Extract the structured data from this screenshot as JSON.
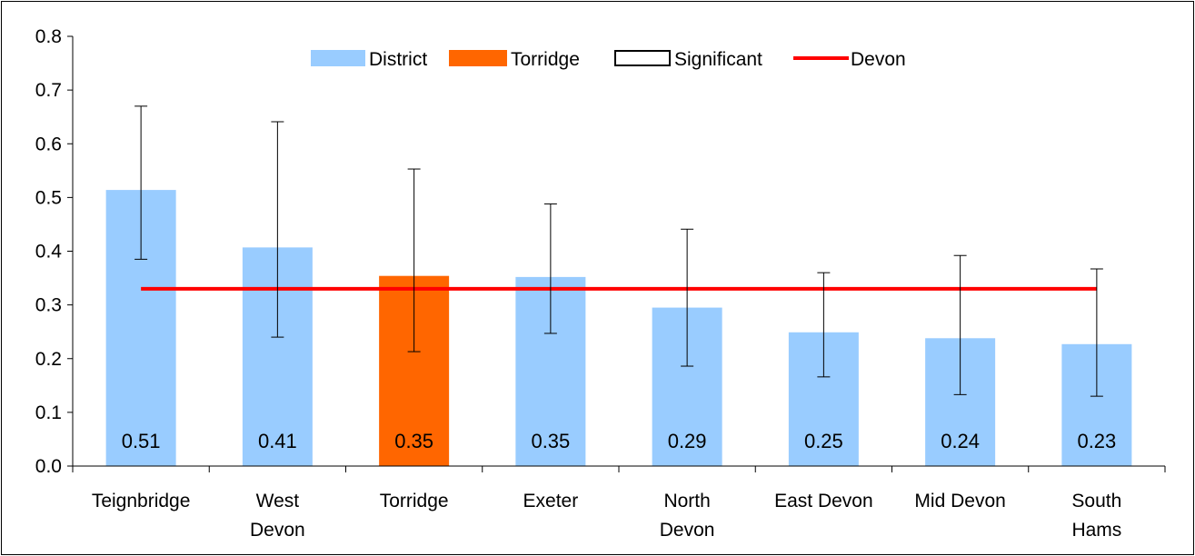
{
  "chart_data": {
    "type": "bar",
    "title": "",
    "xlabel": "",
    "ylabel": "",
    "ylim": [
      0,
      0.8
    ],
    "yticks": [
      "0.0",
      "0.1",
      "0.2",
      "0.3",
      "0.4",
      "0.5",
      "0.6",
      "0.7",
      "0.8"
    ],
    "categories": [
      [
        "Teignbridge"
      ],
      [
        "West",
        "Devon"
      ],
      [
        "Torridge"
      ],
      [
        "Exeter"
      ],
      [
        "North",
        "Devon"
      ],
      [
        "East Devon"
      ],
      [
        "Mid Devon"
      ],
      [
        "South",
        "Hams"
      ]
    ],
    "values": [
      0.514,
      0.407,
      0.354,
      0.352,
      0.295,
      0.249,
      0.238,
      0.227
    ],
    "value_labels": [
      "0.51",
      "0.41",
      "0.35",
      "0.35",
      "0.29",
      "0.25",
      "0.24",
      "0.23"
    ],
    "error_low": [
      0.385,
      0.24,
      0.213,
      0.247,
      0.186,
      0.166,
      0.133,
      0.13
    ],
    "error_high": [
      0.67,
      0.641,
      0.553,
      0.488,
      0.441,
      0.36,
      0.392,
      0.367
    ],
    "highlight_category": "Torridge",
    "reference_line": {
      "name": "Devon",
      "value": 0.33
    },
    "legend": {
      "placement": "top-center",
      "items": [
        {
          "label": "District",
          "kind": "bar"
        },
        {
          "label": "Torridge",
          "kind": "bar-highlight"
        },
        {
          "label": "Significant",
          "kind": "outline"
        },
        {
          "label": "Devon",
          "kind": "line"
        }
      ]
    },
    "grid": false
  },
  "colors": {
    "district": "#99ccff",
    "torridge": "#ff6600",
    "devon_line": "#ff0000",
    "axis": "#000000"
  }
}
